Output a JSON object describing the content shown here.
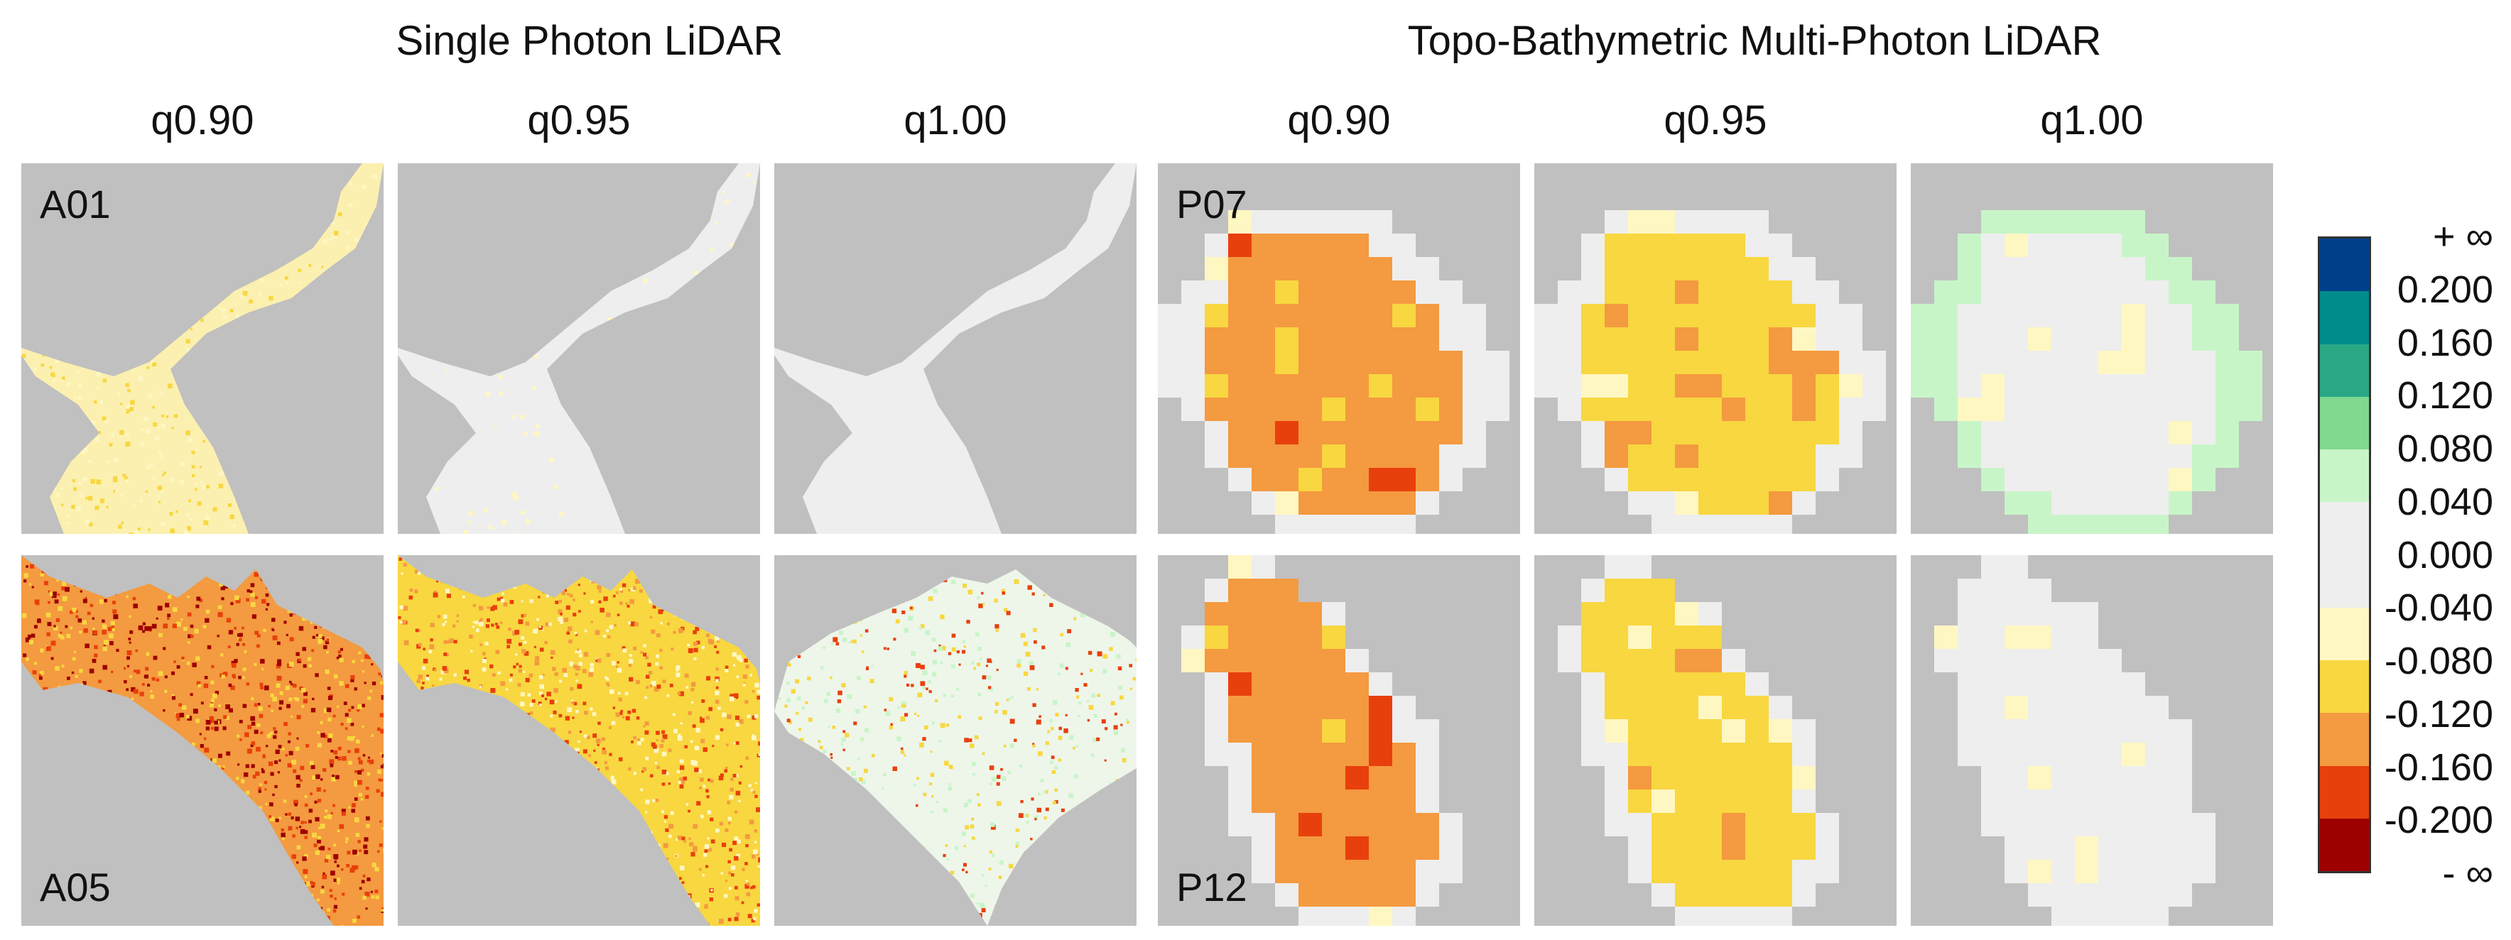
{
  "group_titles": {
    "single": "Single Photon LiDAR",
    "multi": "Topo-Bathymetric Multi-Photon LiDAR"
  },
  "column_headers": [
    "q0.90",
    "q0.95",
    "q1.00",
    "q0.90",
    "q0.95",
    "q1.00"
  ],
  "panels": [
    {
      "label": "A01",
      "sensor": "single",
      "quantile": "q0.90",
      "row": 0,
      "col": 0,
      "fill": "#fcf0b0",
      "speckle": [
        "#f8d740",
        "#fff7c2"
      ],
      "density": 0.35
    },
    {
      "label": "",
      "sensor": "single",
      "quantile": "q0.95",
      "row": 0,
      "col": 1,
      "fill": "#eeeeee",
      "speckle": [
        "#fff7c2"
      ],
      "density": 0.06
    },
    {
      "label": "",
      "sensor": "single",
      "quantile": "q1.00",
      "row": 0,
      "col": 2,
      "fill": "#eeeeee",
      "speckle": [],
      "density": 0
    },
    {
      "label": "P07",
      "sensor": "multi",
      "quantile": "q0.90",
      "row": 0,
      "col": 3
    },
    {
      "label": "",
      "sensor": "multi",
      "quantile": "q0.95",
      "row": 0,
      "col": 4
    },
    {
      "label": "",
      "sensor": "multi",
      "quantile": "q1.00",
      "row": 0,
      "col": 5
    },
    {
      "label": "A05",
      "sensor": "single",
      "quantile": "q0.90",
      "row": 1,
      "col": 0,
      "fill": "#f49a40",
      "speckle": [
        "#e8400c",
        "#9e0000",
        "#f8d740"
      ],
      "density": 0.55
    },
    {
      "label": "",
      "sensor": "single",
      "quantile": "q0.95",
      "row": 1,
      "col": 1,
      "fill": "#f8d740",
      "speckle": [
        "#f49a40",
        "#fff7c2",
        "#e8400c"
      ],
      "density": 0.5
    },
    {
      "label": "",
      "sensor": "single",
      "quantile": "q1.00",
      "row": 1,
      "col": 2,
      "fill": "#eef6ea",
      "speckle": [
        "#c8f5c8",
        "#f8d740",
        "#e8400c"
      ],
      "density": 0.25
    },
    {
      "label": "P12",
      "sensor": "multi",
      "quantile": "q0.90",
      "row": 1,
      "col": 3
    },
    {
      "label": "",
      "sensor": "multi",
      "quantile": "q0.95",
      "row": 1,
      "col": 4
    },
    {
      "label": "",
      "sensor": "multi",
      "quantile": "q1.00",
      "row": 1,
      "col": 5
    }
  ],
  "colorbar": {
    "colors": [
      "#003f8a",
      "#008c8c",
      "#2aa886",
      "#7fd98e",
      "#c8f5c8",
      "#eeeeee",
      "#eeeeee",
      "#fff7c2",
      "#f8d740",
      "#f49a40",
      "#e8400c",
      "#9e0000"
    ],
    "labels": [
      "+ ∞",
      "0.200",
      "0.160",
      "0.120",
      "0.080",
      "0.040",
      "0.000",
      "-0.040",
      "-0.080",
      "-0.120",
      "-0.160",
      "-0.200",
      "- ∞"
    ]
  },
  "colors": {
    "background_nodata": "#c0c0c0"
  }
}
